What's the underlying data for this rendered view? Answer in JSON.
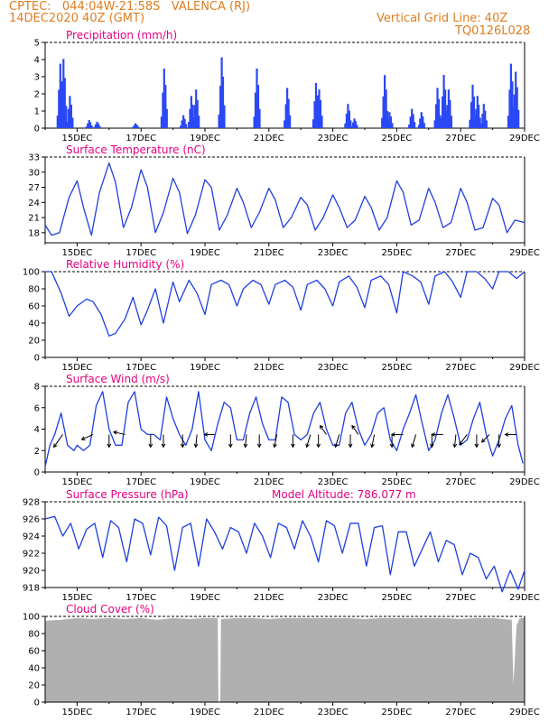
{
  "header": {
    "line1": "CPTEC:   044:04W-21:58S   VALENCA (RJ)",
    "line2": "14DEC2020 40Z (GMT)",
    "grid_note": "Vertical Grid Line: 40Z",
    "code": "TQ0126L028"
  },
  "colors": {
    "line": "#1f3fe0",
    "bar": "#2b48f5",
    "cloud": "#b0b0b0",
    "title": "#e6007e",
    "header": "#e07c1f"
  },
  "x_ticks": [
    "15DEC",
    "17DEC",
    "19DEC",
    "21DEC",
    "23DEC",
    "25DEC",
    "27DEC",
    "29DEC"
  ],
  "chart_data": [
    {
      "type": "bar",
      "title": "Precipitation (mm/h)",
      "ylim": [
        0,
        5
      ],
      "yticks": [
        0,
        1,
        2,
        3,
        4,
        5
      ],
      "events": [
        {
          "day": 14.45,
          "peak": 4.0
        },
        {
          "day": 14.55,
          "peak": 4.3
        },
        {
          "day": 14.75,
          "peak": 2.0
        },
        {
          "day": 15.35,
          "peak": 0.5
        },
        {
          "day": 15.6,
          "peak": 0.4
        },
        {
          "day": 16.8,
          "peak": 0.3
        },
        {
          "day": 17.7,
          "peak": 3.7
        },
        {
          "day": 18.3,
          "peak": 0.8
        },
        {
          "day": 18.55,
          "peak": 2.0
        },
        {
          "day": 18.7,
          "peak": 2.4
        },
        {
          "day": 19.5,
          "peak": 4.4
        },
        {
          "day": 20.6,
          "peak": 3.7
        },
        {
          "day": 21.55,
          "peak": 2.5
        },
        {
          "day": 22.45,
          "peak": 2.8
        },
        {
          "day": 22.55,
          "peak": 2.4
        },
        {
          "day": 23.45,
          "peak": 1.5
        },
        {
          "day": 23.65,
          "peak": 0.6
        },
        {
          "day": 24.6,
          "peak": 3.3
        },
        {
          "day": 24.75,
          "peak": 1.0
        },
        {
          "day": 25.45,
          "peak": 1.2
        },
        {
          "day": 25.75,
          "peak": 1.0
        },
        {
          "day": 26.25,
          "peak": 2.5
        },
        {
          "day": 26.45,
          "peak": 3.3
        },
        {
          "day": 26.6,
          "peak": 2.4
        },
        {
          "day": 27.35,
          "peak": 2.7
        },
        {
          "day": 27.5,
          "peak": 2.0
        },
        {
          "day": 27.7,
          "peak": 1.5
        },
        {
          "day": 28.55,
          "peak": 4.0
        },
        {
          "day": 28.7,
          "peak": 3.5
        }
      ]
    },
    {
      "type": "line",
      "title": "Surface Temperature (nC)",
      "ylim": [
        16,
        33
      ],
      "yticks": [
        18,
        21,
        24,
        27,
        30,
        33
      ],
      "x": [
        14.0,
        14.2,
        14.45,
        14.75,
        15.0,
        15.2,
        15.45,
        15.7,
        16.0,
        16.2,
        16.45,
        16.7,
        17.0,
        17.2,
        17.45,
        17.7,
        18.0,
        18.2,
        18.45,
        18.7,
        19.0,
        19.2,
        19.45,
        19.7,
        20.0,
        20.2,
        20.45,
        20.7,
        21.0,
        21.2,
        21.45,
        21.7,
        22.0,
        22.2,
        22.45,
        22.7,
        23.0,
        23.2,
        23.45,
        23.7,
        24.0,
        24.2,
        24.45,
        24.7,
        25.0,
        25.2,
        25.45,
        25.7,
        26.0,
        26.2,
        26.45,
        26.7,
        27.0,
        27.2,
        27.45,
        27.7,
        28.0,
        28.2,
        28.45,
        28.7,
        29.0
      ],
      "y": [
        19.5,
        17.5,
        18.0,
        25.0,
        28.3,
        23.0,
        17.5,
        26.0,
        31.8,
        28.0,
        19.0,
        23.0,
        30.5,
        27.0,
        18.0,
        22.0,
        28.8,
        26.0,
        17.8,
        21.5,
        28.5,
        27.0,
        18.5,
        21.5,
        26.8,
        24.0,
        19.0,
        22.0,
        26.8,
        24.5,
        19.0,
        21.0,
        25.0,
        23.5,
        18.5,
        21.0,
        25.5,
        23.0,
        19.0,
        20.5,
        25.2,
        23.0,
        18.5,
        21.0,
        28.3,
        26.0,
        19.5,
        20.5,
        26.8,
        24.0,
        19.0,
        20.0,
        26.8,
        24.0,
        18.5,
        19.0,
        24.8,
        23.5,
        18.0,
        20.5,
        20.0
      ]
    },
    {
      "type": "line",
      "title": "Relative Humidity (%)",
      "ylim": [
        0,
        100
      ],
      "yticks": [
        0,
        20,
        40,
        60,
        80,
        100
      ],
      "x": [
        14.0,
        14.2,
        14.5,
        14.75,
        15.0,
        15.3,
        15.5,
        15.75,
        16.0,
        16.2,
        16.5,
        16.75,
        17.0,
        17.2,
        17.45,
        17.7,
        18.0,
        18.2,
        18.5,
        18.75,
        19.0,
        19.2,
        19.5,
        19.75,
        20.0,
        20.2,
        20.5,
        20.75,
        21.0,
        21.2,
        21.5,
        21.75,
        22.0,
        22.2,
        22.5,
        22.75,
        23.0,
        23.2,
        23.5,
        23.75,
        24.0,
        24.2,
        24.5,
        24.75,
        25.0,
        25.2,
        25.5,
        25.75,
        26.0,
        26.2,
        26.5,
        26.75,
        27.0,
        27.2,
        27.5,
        27.75,
        28.0,
        28.2,
        28.5,
        28.75,
        29.0
      ],
      "y": [
        100,
        100,
        75,
        48,
        60,
        68,
        65,
        50,
        25,
        28,
        45,
        70,
        38,
        55,
        80,
        40,
        88,
        65,
        90,
        75,
        50,
        85,
        90,
        85,
        60,
        80,
        90,
        85,
        62,
        85,
        90,
        82,
        55,
        85,
        90,
        80,
        60,
        88,
        95,
        82,
        58,
        90,
        95,
        85,
        52,
        100,
        95,
        88,
        62,
        95,
        100,
        88,
        70,
        100,
        100,
        92,
        80,
        100,
        100,
        92,
        100
      ]
    },
    {
      "type": "line",
      "title": "Surface Wind (m/s)",
      "ylim": [
        0,
        8
      ],
      "yticks": [
        0,
        2,
        4,
        6,
        8
      ],
      "x": [
        14.0,
        14.15,
        14.3,
        14.5,
        14.7,
        14.9,
        15.0,
        15.2,
        15.4,
        15.6,
        15.8,
        16.0,
        16.2,
        16.4,
        16.6,
        16.8,
        17.0,
        17.2,
        17.4,
        17.6,
        17.8,
        18.0,
        18.2,
        18.4,
        18.6,
        18.8,
        19.0,
        19.2,
        19.4,
        19.6,
        19.8,
        20.0,
        20.2,
        20.4,
        20.6,
        20.8,
        21.0,
        21.2,
        21.4,
        21.6,
        21.8,
        22.0,
        22.2,
        22.4,
        22.6,
        22.8,
        23.0,
        23.2,
        23.4,
        23.6,
        23.8,
        24.0,
        24.2,
        24.4,
        24.6,
        24.8,
        25.0,
        25.2,
        25.4,
        25.6,
        25.8,
        26.0,
        26.2,
        26.4,
        26.6,
        26.8,
        27.0,
        27.2,
        27.4,
        27.6,
        27.8,
        28.0,
        28.2,
        28.4,
        28.6,
        28.8,
        28.95
      ],
      "y": [
        0.5,
        2.5,
        3.5,
        5.5,
        2.5,
        2.0,
        2.5,
        2.0,
        2.5,
        6.2,
        7.5,
        4.0,
        2.5,
        2.5,
        6.5,
        7.5,
        4.0,
        3.5,
        3.5,
        3.0,
        7.0,
        5.0,
        3.5,
        2.5,
        4.0,
        7.5,
        3.0,
        2.0,
        4.5,
        6.5,
        6.0,
        3.0,
        3.0,
        5.5,
        7.0,
        4.5,
        3.0,
        3.0,
        7.0,
        6.5,
        3.5,
        3.0,
        3.5,
        5.5,
        6.5,
        4.0,
        2.5,
        2.5,
        5.5,
        6.5,
        4.0,
        2.5,
        3.5,
        5.5,
        6.0,
        3.0,
        2.0,
        4.0,
        5.5,
        7.2,
        4.5,
        2.0,
        3.0,
        5.5,
        7.2,
        5.0,
        2.5,
        3.0,
        5.0,
        6.5,
        3.5,
        1.5,
        3.0,
        5.0,
        6.2,
        2.5,
        0.8
      ],
      "arrows": [
        {
          "day": 14.55,
          "dx": -0.7,
          "dy": 1.0
        },
        {
          "day": 15.5,
          "dx": -0.9,
          "dy": 0.4
        },
        {
          "day": 16.0,
          "dx": 0.0,
          "dy": 1.0
        },
        {
          "day": 16.5,
          "dx": -0.9,
          "dy": -0.2
        },
        {
          "day": 17.3,
          "dx": 0.0,
          "dy": 1.0
        },
        {
          "day": 17.7,
          "dx": 0.0,
          "dy": 1.0
        },
        {
          "day": 18.3,
          "dx": 0.0,
          "dy": 1.0
        },
        {
          "day": 18.75,
          "dx": -0.1,
          "dy": 1.0
        },
        {
          "day": 19.3,
          "dx": -0.8,
          "dy": 0.0
        },
        {
          "day": 19.8,
          "dx": 0.0,
          "dy": 1.0
        },
        {
          "day": 20.3,
          "dx": -0.1,
          "dy": 1.0
        },
        {
          "day": 20.7,
          "dx": 0.0,
          "dy": 1.0
        },
        {
          "day": 21.25,
          "dx": -0.2,
          "dy": 1.0
        },
        {
          "day": 21.75,
          "dx": 0.0,
          "dy": 1.0
        },
        {
          "day": 22.3,
          "dx": -0.3,
          "dy": 1.0
        },
        {
          "day": 22.55,
          "dx": 0.0,
          "dy": 1.0
        },
        {
          "day": 22.8,
          "dx": -0.5,
          "dy": -0.7
        },
        {
          "day": 23.2,
          "dx": -0.3,
          "dy": 1.0
        },
        {
          "day": 23.55,
          "dx": 0.0,
          "dy": 1.0
        },
        {
          "day": 23.8,
          "dx": -0.5,
          "dy": -0.7
        },
        {
          "day": 24.3,
          "dx": -0.2,
          "dy": 1.0
        },
        {
          "day": 24.85,
          "dx": 0.0,
          "dy": 1.0
        },
        {
          "day": 25.2,
          "dx": -0.9,
          "dy": 0.0
        },
        {
          "day": 25.6,
          "dx": -0.3,
          "dy": 1.0
        },
        {
          "day": 26.1,
          "dx": 0.0,
          "dy": 1.0
        },
        {
          "day": 26.45,
          "dx": -0.9,
          "dy": 0.0
        },
        {
          "day": 26.85,
          "dx": -0.1,
          "dy": 1.0
        },
        {
          "day": 27.2,
          "dx": -0.6,
          "dy": 0.8
        },
        {
          "day": 27.5,
          "dx": 0.0,
          "dy": 1.0
        },
        {
          "day": 27.9,
          "dx": -0.6,
          "dy": 0.6
        },
        {
          "day": 28.2,
          "dx": 0.0,
          "dy": 1.0
        },
        {
          "day": 28.75,
          "dx": -0.9,
          "dy": 0.0
        }
      ]
    },
    {
      "type": "line",
      "title": "Surface Pressure (hPa)",
      "annotation": "Model Altitude: 786.077 m",
      "ylim": [
        918,
        928
      ],
      "yticks": [
        918,
        920,
        922,
        924,
        926,
        928
      ],
      "x": [
        14.0,
        14.3,
        14.55,
        14.8,
        15.05,
        15.3,
        15.55,
        15.8,
        16.05,
        16.3,
        16.55,
        16.8,
        17.05,
        17.3,
        17.55,
        17.8,
        18.05,
        18.3,
        18.55,
        18.8,
        19.05,
        19.3,
        19.55,
        19.8,
        20.05,
        20.3,
        20.55,
        20.8,
        21.05,
        21.3,
        21.55,
        21.8,
        22.05,
        22.3,
        22.55,
        22.8,
        23.05,
        23.3,
        23.55,
        23.8,
        24.05,
        24.3,
        24.55,
        24.8,
        25.05,
        25.3,
        25.55,
        25.8,
        26.05,
        26.3,
        26.55,
        26.8,
        27.05,
        27.3,
        27.55,
        27.8,
        28.05,
        28.3,
        28.55,
        28.8,
        29.0
      ],
      "y": [
        926,
        926.3,
        924,
        925.5,
        922.5,
        924.8,
        925.5,
        921.5,
        925.8,
        925,
        921,
        926,
        925.5,
        921.8,
        926.2,
        925.2,
        920,
        925,
        925.5,
        920.5,
        926,
        924.5,
        922.5,
        925,
        924.5,
        922,
        925.5,
        924,
        921.5,
        925.5,
        925,
        922.5,
        925.8,
        924,
        921,
        925.8,
        925.2,
        922,
        925.5,
        925.5,
        920.5,
        925,
        925.2,
        919.5,
        924.5,
        924.5,
        920.5,
        922.5,
        924.5,
        921,
        923.5,
        923,
        919.5,
        922,
        921.5,
        919,
        920.5,
        917.5,
        920,
        917.8,
        920
      ]
    },
    {
      "type": "area",
      "title": "Cloud Cover (%)",
      "ylim": [
        0,
        100
      ],
      "yticks": [
        0,
        20,
        40,
        60,
        80,
        100
      ],
      "x": [
        14.0,
        14.5,
        15.0,
        15.5,
        16.0,
        16.5,
        17.0,
        17.5,
        18.0,
        18.5,
        19.0,
        19.4,
        19.42,
        19.48,
        19.5,
        20.0,
        20.5,
        21.0,
        21.5,
        22.0,
        22.5,
        23.0,
        23.5,
        24.0,
        24.5,
        25.0,
        25.5,
        26.0,
        26.5,
        27.0,
        27.5,
        28.0,
        28.6,
        28.65,
        28.75,
        28.85,
        29.0
      ],
      "y": [
        95,
        96,
        98,
        97,
        98,
        97,
        98,
        96,
        98,
        97,
        98,
        98,
        0,
        0,
        97,
        98,
        98,
        97,
        98,
        98,
        98,
        98,
        98,
        97,
        98,
        98,
        98,
        98,
        98,
        97,
        98,
        98,
        96,
        20,
        90,
        98,
        98
      ]
    }
  ]
}
